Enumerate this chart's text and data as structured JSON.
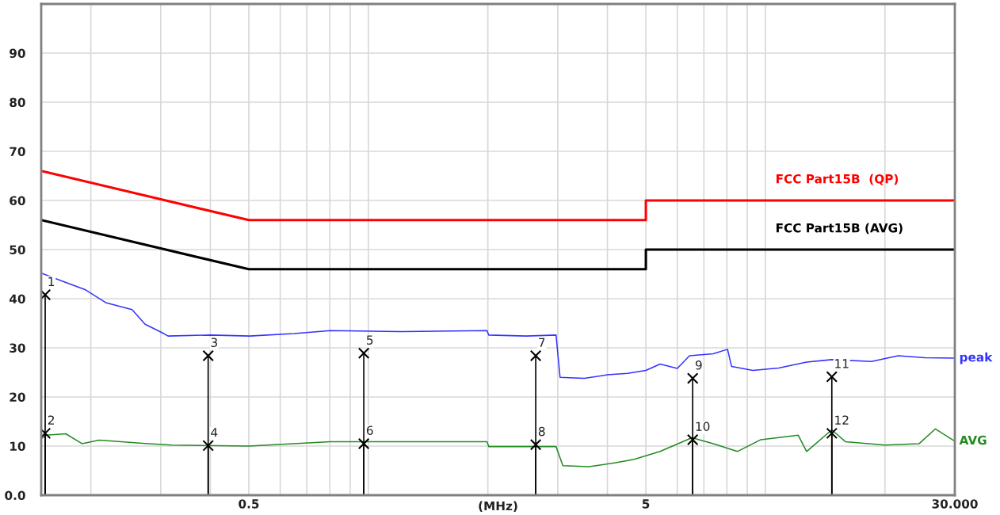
{
  "chart_data": {
    "type": "line",
    "xlabel": "(MHz)",
    "log": "x",
    "grid": true,
    "legend": false,
    "line_style": "solid",
    "marker": "none",
    "xlim": [
      0.15,
      30
    ],
    "ylim": [
      0,
      100
    ],
    "xticks": [
      {
        "value": 0.2,
        "label": null
      },
      {
        "value": 0.3,
        "label": null
      },
      {
        "value": 0.4,
        "label": null
      },
      0.5,
      {
        "value": 0.6,
        "label": null
      },
      {
        "value": 0.7,
        "label": null
      },
      {
        "value": 0.8,
        "label": null
      },
      {
        "value": 0.9,
        "label": null
      },
      {
        "value": 1,
        "label": null
      },
      {
        "value": 2,
        "label": null
      },
      {
        "value": 3,
        "label": null
      },
      {
        "value": 4,
        "label": null
      },
      5,
      {
        "value": 6,
        "label": null
      },
      {
        "value": 7,
        "label": null
      },
      {
        "value": 8,
        "label": null
      },
      {
        "value": 9,
        "label": null
      },
      {
        "value": 10,
        "label": null
      },
      {
        "value": 20,
        "label": null
      },
      {
        "value": 30,
        "label": "30.000"
      }
    ],
    "yticks": [
      {
        "value": 0,
        "label": "0.0"
      },
      10,
      20,
      30,
      40,
      50,
      60,
      70,
      80,
      90
    ],
    "series": [
      {
        "name": "FCC Part15B  (QP)",
        "color": "#ff0000",
        "x": [
          0.15,
          0.5,
          5,
          5,
          30
        ],
        "values": [
          66,
          56,
          56,
          60,
          60
        ]
      },
      {
        "name": "FCC Part15B (AVG)",
        "color": "#000000",
        "x": [
          0.15,
          0.5,
          5,
          5,
          30
        ],
        "values": [
          56,
          46,
          46,
          50,
          50
        ]
      },
      {
        "name": "peak",
        "color": "#3333ff",
        "x": [
          0.15,
          0.173,
          0.194,
          0.218,
          0.254,
          0.274,
          0.302,
          0.313,
          0.4,
          0.502,
          0.65,
          0.803,
          1.2,
          1.99,
          2.01,
          2.5,
          2.97,
          3.04,
          3.5,
          4.0,
          4.5,
          5.0,
          5.43,
          6.0,
          6.44,
          7.39,
          8.03,
          8.22,
          9.3,
          10.8,
          12.7,
          14.7,
          18.5,
          21.6,
          25.2,
          30
        ],
        "values": [
          45.2,
          43.3,
          41.8,
          39.2,
          37.8,
          34.8,
          33.1,
          32.4,
          32.6,
          32.4,
          32.9,
          33.5,
          33.3,
          33.5,
          32.6,
          32.4,
          32.6,
          24.0,
          23.8,
          24.5,
          24.8,
          25.4,
          26.7,
          25.8,
          28.4,
          28.8,
          29.7,
          26.2,
          25.4,
          25.9,
          27.1,
          27.6,
          27.2,
          28.4,
          28.0,
          27.9
        ]
      },
      {
        "name": "AVG",
        "color": "#228b22",
        "x": [
          0.15,
          0.154,
          0.173,
          0.19,
          0.21,
          0.279,
          0.32,
          0.5,
          0.803,
          1.99,
          2.01,
          2.97,
          3.09,
          3.6,
          4.2,
          4.67,
          5.43,
          6.53,
          7.39,
          8.5,
          9.74,
          12.1,
          12.7,
          14.7,
          15.9,
          20.0,
          24.4,
          26.8,
          30
        ],
        "values": [
          11.5,
          12.2,
          12.5,
          10.5,
          11.2,
          10.5,
          10.2,
          10.0,
          10.9,
          10.9,
          9.9,
          9.9,
          6.0,
          5.8,
          6.6,
          7.3,
          8.9,
          11.7,
          10.5,
          8.9,
          11.3,
          12.2,
          8.9,
          13.3,
          10.9,
          10.2,
          10.5,
          13.5,
          11.0
        ]
      },
      {
        "type": "lollipop",
        "color": "#000000",
        "marker": "cross",
        "x": [
          0.1535,
          0.1535,
          0.395,
          0.395,
          0.974,
          0.974,
          2.64,
          2.64,
          6.56,
          6.56,
          14.7,
          14.7
        ],
        "values": [
          40.8,
          12.6,
          28.4,
          10.1,
          28.9,
          10.5,
          28.4,
          10.3,
          23.8,
          11.3,
          24.1,
          12.6
        ]
      }
    ],
    "annotations": [
      {
        "text": "1",
        "x": 0.1535,
        "y": 40.8
      },
      {
        "text": "2",
        "x": 0.1535,
        "y": 12.6
      },
      {
        "text": "3",
        "x": 0.395,
        "y": 28.4
      },
      {
        "text": "4",
        "x": 0.395,
        "y": 10.1
      },
      {
        "text": "5",
        "x": 0.974,
        "y": 28.9
      },
      {
        "text": "6",
        "x": 0.974,
        "y": 10.5
      },
      {
        "text": "7",
        "x": 2.64,
        "y": 28.4
      },
      {
        "text": "8",
        "x": 2.64,
        "y": 10.3
      },
      {
        "text": "9",
        "x": 6.56,
        "y": 23.8
      },
      {
        "text": "10",
        "x": 6.56,
        "y": 11.3
      },
      {
        "text": "11",
        "x": 14.7,
        "y": 24.1
      },
      {
        "text": "12",
        "x": 14.7,
        "y": 12.6
      }
    ]
  }
}
